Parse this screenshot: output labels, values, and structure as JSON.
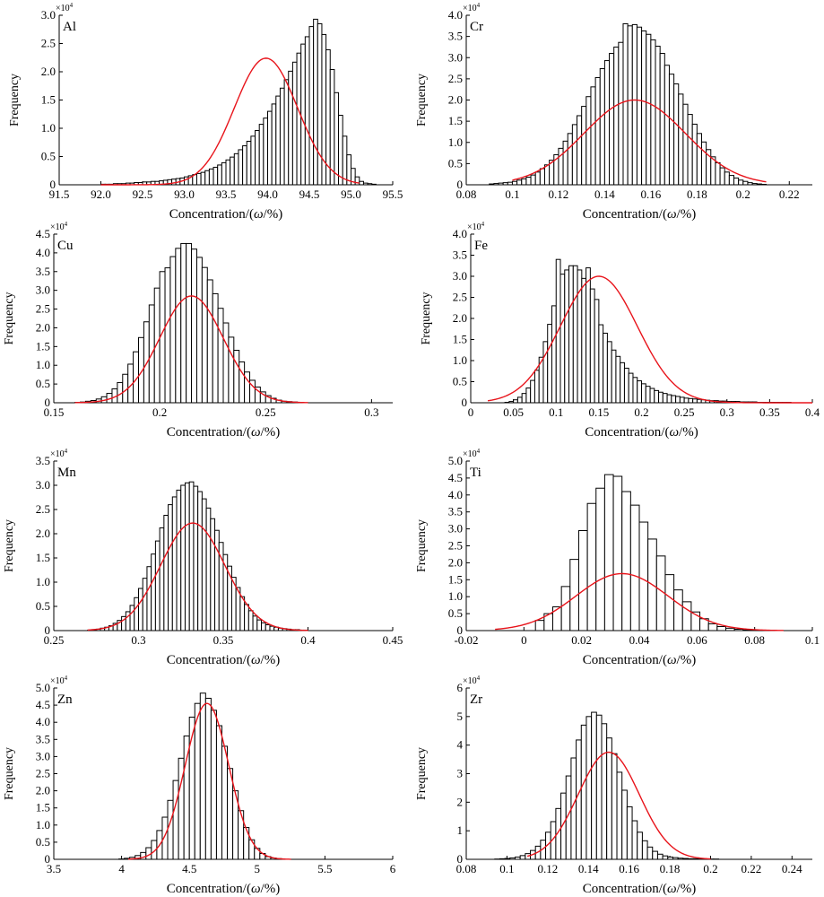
{
  "figure": {
    "xlabel_prefix": "Concentration/(",
    "xlabel_symbol": "ω",
    "xlabel_suffix": "/%)",
    "ylabel": "Frequency",
    "multiplier": "×10",
    "multiplier_exp": "4"
  },
  "colors": {
    "bars": "#000000",
    "fit": "#e8141b"
  },
  "chart_data": [
    {
      "type": "bar",
      "element": "Al",
      "xlim": [
        91.5,
        95.5
      ],
      "ylim": [
        0,
        3.0
      ],
      "xticks": [
        91.5,
        92.0,
        92.5,
        93.0,
        93.5,
        94.0,
        94.5,
        95.0,
        95.5
      ],
      "xtick_labels": [
        "91.5",
        "92.0",
        "92.5",
        "93.0",
        "93.5",
        "94.0",
        "94.5",
        "95.0",
        "95.5"
      ],
      "yticks": [
        0,
        0.5,
        1.0,
        1.5,
        2.0,
        2.5,
        3.0
      ],
      "ytick_labels": [
        "0",
        "0.5",
        "1.0",
        "1.5",
        "2.0",
        "2.5",
        "3.0"
      ],
      "bin_start": 92.0,
      "bin_width": 0.05,
      "counts": [
        0.01,
        0.01,
        0.01,
        0.02,
        0.02,
        0.02,
        0.03,
        0.03,
        0.04,
        0.04,
        0.05,
        0.05,
        0.06,
        0.06,
        0.07,
        0.08,
        0.09,
        0.1,
        0.11,
        0.12,
        0.14,
        0.16,
        0.18,
        0.2,
        0.22,
        0.25,
        0.28,
        0.31,
        0.35,
        0.39,
        0.44,
        0.49,
        0.55,
        0.62,
        0.69,
        0.77,
        0.86,
        0.96,
        1.07,
        1.18,
        1.3,
        1.43,
        1.57,
        1.71,
        1.86,
        2.01,
        2.17,
        2.33,
        2.49,
        2.62,
        2.8,
        2.93,
        2.85,
        2.66,
        2.39,
        2.04,
        1.63,
        1.23,
        0.86,
        0.53,
        0.29,
        0.14,
        0.06,
        0.03,
        0.02,
        0.01
      ],
      "fit": {
        "mean": 93.98,
        "sd": 0.38,
        "peak": 2.24,
        "range": [
          92.0,
          95.1
        ]
      }
    },
    {
      "type": "bar",
      "element": "Cr",
      "xlim": [
        0.08,
        0.23
      ],
      "ylim": [
        0,
        4.0
      ],
      "xticks": [
        0.08,
        0.1,
        0.12,
        0.14,
        0.16,
        0.18,
        0.2,
        0.22
      ],
      "xtick_labels": [
        "0.08",
        "0.1",
        "0.12",
        "0.14",
        "0.16",
        "0.18",
        "0.2",
        "0.22"
      ],
      "yticks": [
        0,
        0.5,
        1.0,
        1.5,
        2.0,
        2.5,
        3.0,
        3.5,
        4.0
      ],
      "ytick_labels": [
        "0",
        "0.5",
        "1.0",
        "1.5",
        "2.0",
        "2.5",
        "3.0",
        "3.5",
        "4.0"
      ],
      "bin_start": 0.09,
      "bin_width": 0.002,
      "counts": [
        0.02,
        0.03,
        0.04,
        0.05,
        0.06,
        0.08,
        0.11,
        0.14,
        0.18,
        0.23,
        0.3,
        0.38,
        0.47,
        0.58,
        0.71,
        0.86,
        1.03,
        1.21,
        1.42,
        1.63,
        1.85,
        2.08,
        2.31,
        2.53,
        2.74,
        2.93,
        3.1,
        3.25,
        3.36,
        3.8,
        3.75,
        3.78,
        3.72,
        3.63,
        3.55,
        3.42,
        3.27,
        3.1,
        2.82,
        2.61,
        2.38,
        2.14,
        1.9,
        1.66,
        1.43,
        1.21,
        1.01,
        0.83,
        0.66,
        0.52,
        0.4,
        0.3,
        0.22,
        0.16,
        0.11,
        0.08,
        0.05,
        0.03,
        0.02,
        0.01
      ],
      "fit": {
        "mean": 0.153,
        "sd": 0.022,
        "peak": 2.0,
        "range": [
          0.1,
          0.21
        ]
      }
    },
    {
      "type": "bar",
      "element": "Cu",
      "xlim": [
        0.15,
        0.31
      ],
      "ylim": [
        0,
        4.5
      ],
      "xticks": [
        0.15,
        0.2,
        0.25,
        0.3
      ],
      "xtick_labels": [
        "0.15",
        "0.2",
        "0.25",
        "0.3"
      ],
      "yticks": [
        0,
        0.5,
        1.0,
        1.5,
        2.0,
        2.5,
        3.0,
        3.5,
        4.0,
        4.5
      ],
      "ytick_labels": [
        "0",
        "0.5",
        "1.0",
        "1.5",
        "2.0",
        "2.5",
        "3.0",
        "3.5",
        "4.0",
        "4.5"
      ],
      "bin_start": 0.16,
      "bin_width": 0.0025,
      "counts": [
        0.01,
        0.02,
        0.04,
        0.06,
        0.1,
        0.16,
        0.25,
        0.37,
        0.54,
        0.76,
        1.03,
        1.36,
        1.74,
        2.16,
        2.61,
        3.06,
        3.5,
        3.6,
        3.9,
        4.12,
        4.25,
        4.25,
        4.1,
        3.88,
        3.61,
        3.28,
        2.91,
        2.52,
        2.13,
        1.75,
        1.4,
        1.09,
        0.82,
        0.6,
        0.42,
        0.29,
        0.19,
        0.12,
        0.07,
        0.04,
        0.03,
        0.02
      ],
      "fit": {
        "mean": 0.215,
        "sd": 0.015,
        "peak": 2.85,
        "range": [
          0.16,
          0.27
        ]
      }
    },
    {
      "type": "bar",
      "element": "Fe",
      "xlim": [
        0,
        0.4
      ],
      "ylim": [
        0,
        4.0
      ],
      "xticks": [
        0,
        0.05,
        0.1,
        0.15,
        0.2,
        0.25,
        0.3,
        0.35,
        0.4
      ],
      "xtick_labels": [
        "0",
        "0.05",
        "0.1",
        "0.15",
        "0.2",
        "0.25",
        "0.3",
        "0.35",
        "0.4"
      ],
      "yticks": [
        0,
        0.5,
        1.0,
        1.5,
        2.0,
        2.5,
        3.0,
        3.5,
        4.0
      ],
      "ytick_labels": [
        "0",
        "0.5",
        "1.0",
        "1.5",
        "2.0",
        "2.5",
        "3.0",
        "3.5",
        "4.0"
      ],
      "bin_start": 0.04,
      "bin_width": 0.005,
      "counts": [
        0.01,
        0.03,
        0.07,
        0.13,
        0.22,
        0.35,
        0.53,
        0.77,
        1.08,
        1.45,
        1.86,
        2.3,
        3.4,
        3.05,
        3.15,
        3.25,
        3.25,
        3.15,
        2.95,
        3.2,
        2.7,
        2.45,
        1.85,
        1.65,
        1.45,
        1.25,
        1.1,
        0.95,
        0.82,
        0.7,
        0.6,
        0.52,
        0.45,
        0.39,
        0.34,
        0.29,
        0.25,
        0.22,
        0.19,
        0.17,
        0.15,
        0.13,
        0.11,
        0.1,
        0.09,
        0.08,
        0.07,
        0.06,
        0.05,
        0.05,
        0.04,
        0.04,
        0.03,
        0.03,
        0.03,
        0.02,
        0.02,
        0.02,
        0.02,
        0.01,
        0.01,
        0.01,
        0.01,
        0.01,
        0.01,
        0.01,
        0.01
      ],
      "fit": {
        "mean": 0.15,
        "sd": 0.045,
        "peak": 3.0,
        "range": [
          0.02,
          0.4
        ]
      }
    },
    {
      "type": "bar",
      "element": "Mn",
      "xlim": [
        0.25,
        0.45
      ],
      "ylim": [
        0,
        3.5
      ],
      "xticks": [
        0.25,
        0.3,
        0.35,
        0.4,
        0.45
      ],
      "xtick_labels": [
        "0.25",
        "0.3",
        "0.35",
        "0.4",
        "0.45"
      ],
      "yticks": [
        0,
        0.5,
        1.0,
        1.5,
        2.0,
        2.5,
        3.0,
        3.5
      ],
      "ytick_labels": [
        "0",
        "0.5",
        "1.0",
        "1.5",
        "2.0",
        "2.5",
        "3.0",
        "3.5"
      ],
      "bin_start": 0.27,
      "bin_width": 0.0025,
      "counts": [
        0.01,
        0.02,
        0.03,
        0.05,
        0.07,
        0.1,
        0.15,
        0.21,
        0.29,
        0.39,
        0.52,
        0.68,
        0.87,
        1.08,
        1.32,
        1.58,
        1.85,
        2.12,
        2.38,
        2.6,
        2.76,
        2.9,
        3.0,
        3.05,
        3.07,
        2.98,
        2.87,
        2.72,
        2.53,
        2.31,
        2.07,
        1.82,
        1.57,
        1.33,
        1.1,
        0.89,
        0.7,
        0.54,
        0.41,
        0.3,
        0.22,
        0.16,
        0.12,
        0.09,
        0.07,
        0.05,
        0.04,
        0.03,
        0.02,
        0.02,
        0.01,
        0.01
      ],
      "fit": {
        "mean": 0.332,
        "sd": 0.019,
        "peak": 2.22,
        "range": [
          0.27,
          0.4
        ]
      }
    },
    {
      "type": "bar",
      "element": "Ti",
      "xlim": [
        -0.02,
        0.1
      ],
      "ylim": [
        0,
        5.0
      ],
      "xticks": [
        -0.02,
        0,
        0.02,
        0.04,
        0.06,
        0.08,
        0.1
      ],
      "xtick_labels": [
        "-0.02",
        "0",
        "0.02",
        "0.04",
        "0.06",
        "0.08",
        "0.1"
      ],
      "yticks": [
        0,
        0.5,
        1.0,
        1.5,
        2.0,
        2.5,
        3.0,
        3.5,
        4.0,
        4.5,
        5.0
      ],
      "ytick_labels": [
        "0",
        "0.5",
        "1.0",
        "1.5",
        "2.0",
        "2.5",
        "3.0",
        "3.5",
        "4.0",
        "4.5",
        "5.0"
      ],
      "bin_start": 0.004,
      "bin_width": 0.003,
      "counts": [
        0.3,
        0.5,
        0.7,
        1.3,
        2.1,
        2.95,
        3.75,
        4.2,
        4.6,
        4.55,
        4.1,
        3.7,
        3.2,
        2.7,
        2.2,
        1.65,
        1.2,
        0.85,
        0.55,
        0.35,
        0.2,
        0.12,
        0.07,
        0.04,
        0.02
      ],
      "fit": {
        "mean": 0.034,
        "sd": 0.016,
        "peak": 1.68,
        "range": [
          -0.01,
          0.09
        ]
      }
    },
    {
      "type": "bar",
      "element": "Zn",
      "xlim": [
        3.5,
        6.0
      ],
      "ylim": [
        0,
        5.0
      ],
      "xticks": [
        3.5,
        4.0,
        4.5,
        5.0,
        5.5,
        6.0
      ],
      "xtick_labels": [
        "3.5",
        "4",
        "4.5",
        "5",
        "5.5",
        "6"
      ],
      "yticks": [
        0,
        0.5,
        1.0,
        1.5,
        2.0,
        2.5,
        3.0,
        3.5,
        4.0,
        4.5,
        5.0
      ],
      "ytick_labels": [
        "0",
        "0.5",
        "1.0",
        "1.5",
        "2.0",
        "2.5",
        "3.0",
        "3.5",
        "4.0",
        "4.5",
        "5.0"
      ],
      "bin_start": 3.98,
      "bin_width": 0.04,
      "counts": [
        0.01,
        0.03,
        0.06,
        0.11,
        0.2,
        0.34,
        0.55,
        0.84,
        1.23,
        1.72,
        2.3,
        2.95,
        3.6,
        4.15,
        4.55,
        4.85,
        4.7,
        4.35,
        3.9,
        3.3,
        2.65,
        2.0,
        1.42,
        0.93,
        0.57,
        0.32,
        0.17,
        0.08,
        0.04,
        0.02
      ],
      "fit": {
        "mean": 4.63,
        "sd": 0.16,
        "peak": 4.55,
        "range": [
          4.05,
          5.25
        ]
      }
    },
    {
      "type": "bar",
      "element": "Zr",
      "xlim": [
        0.08,
        0.25
      ],
      "ylim": [
        0,
        6
      ],
      "xticks": [
        0.08,
        0.1,
        0.12,
        0.14,
        0.16,
        0.18,
        0.2,
        0.22,
        0.24
      ],
      "xtick_labels": [
        "0.08",
        "0.1",
        "0.12",
        "0.14",
        "0.16",
        "0.18",
        "0.2",
        "0.22",
        "0.24"
      ],
      "yticks": [
        0,
        1,
        2,
        3,
        4,
        5,
        6
      ],
      "ytick_labels": [
        "0",
        "1",
        "2",
        "3",
        "4",
        "5",
        "6"
      ],
      "bin_start": 0.094,
      "bin_width": 0.0025,
      "counts": [
        0.01,
        0.02,
        0.03,
        0.05,
        0.08,
        0.13,
        0.2,
        0.31,
        0.46,
        0.67,
        0.95,
        1.32,
        1.78,
        2.32,
        2.92,
        3.55,
        4.18,
        4.7,
        5.0,
        5.15,
        5.05,
        4.75,
        4.25,
        3.7,
        3.05,
        2.42,
        1.84,
        1.35,
        0.95,
        0.65,
        0.43,
        0.28,
        0.18,
        0.12,
        0.08,
        0.06,
        0.04,
        0.03,
        0.02,
        0.02,
        0.01,
        0.01,
        0.01,
        0.01
      ],
      "fit": {
        "mean": 0.15,
        "sd": 0.015,
        "peak": 3.75,
        "range": [
          0.11,
          0.2
        ]
      }
    }
  ]
}
